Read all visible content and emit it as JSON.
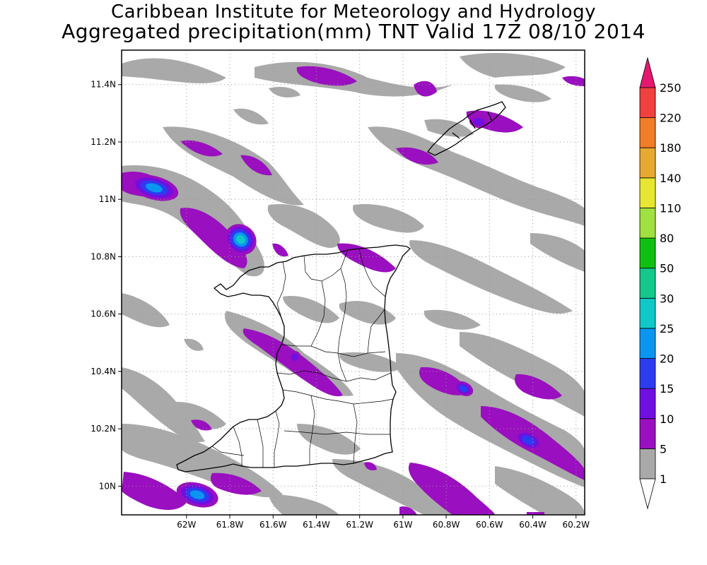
{
  "header": {
    "title": "Caribbean Institute for Meteorology and Hydrology",
    "subtitle": "Aggregated precipitation(mm) TNT Valid 17Z 08/10 2014"
  },
  "map": {
    "region": "Trinidad and Tobago",
    "lon_range": [
      -62.3,
      -60.16
    ],
    "lat_range": [
      9.9,
      11.52
    ],
    "lon_ticks": [
      {
        "value": -62.0,
        "label": "62W"
      },
      {
        "value": -61.8,
        "label": "61.8W"
      },
      {
        "value": -61.6,
        "label": "61.6W"
      },
      {
        "value": -61.4,
        "label": "61.4W"
      },
      {
        "value": -61.2,
        "label": "61.2W"
      },
      {
        "value": -61.0,
        "label": "61W"
      },
      {
        "value": -60.8,
        "label": "60.8W"
      },
      {
        "value": -60.6,
        "label": "60.6W"
      },
      {
        "value": -60.4,
        "label": "60.4W"
      },
      {
        "value": -60.2,
        "label": "60.2W"
      }
    ],
    "lat_ticks": [
      {
        "value": 10.0,
        "label": "10N"
      },
      {
        "value": 10.2,
        "label": "10.2N"
      },
      {
        "value": 10.4,
        "label": "10.4N"
      },
      {
        "value": 10.6,
        "label": "10.6N"
      },
      {
        "value": 10.8,
        "label": "10.8N"
      },
      {
        "value": 11.0,
        "label": "11N"
      },
      {
        "value": 11.2,
        "label": "11.2N"
      },
      {
        "value": 11.4,
        "label": "11.4N"
      }
    ],
    "grid": "dotted",
    "precip_cells": [
      {
        "lon": -62.15,
        "lat": 11.04,
        "rlon": 0.14,
        "rlat": 0.05,
        "rot": 15,
        "mm": 25
      },
      {
        "lon": -61.75,
        "lat": 10.86,
        "rlon": 0.09,
        "rlat": 0.06,
        "rot": 40,
        "mm": 30
      },
      {
        "lon": -61.95,
        "lat": 9.97,
        "rlon": 0.12,
        "rlat": 0.05,
        "rot": 15,
        "mm": 25
      },
      {
        "lon": -60.72,
        "lat": 10.34,
        "rlon": 0.06,
        "rlat": 0.03,
        "rot": 25,
        "mm": 20
      },
      {
        "lon": -60.42,
        "lat": 10.16,
        "rlon": 0.09,
        "rlat": 0.04,
        "rot": 25,
        "mm": 20
      },
      {
        "lon": -61.5,
        "lat": 10.45,
        "rlon": 0.04,
        "rlat": 0.03,
        "rot": 30,
        "mm": 15
      },
      {
        "lon": -60.65,
        "lat": 11.27,
        "rlon": 0.06,
        "rlat": 0.03,
        "rot": 10,
        "mm": 15
      }
    ]
  },
  "colorbar": {
    "levels": [
      "1",
      "5",
      "10",
      "15",
      "20",
      "25",
      "30",
      "50",
      "80",
      "110",
      "140",
      "180",
      "220",
      "250"
    ],
    "colors": [
      "#ffffff",
      "#a9a9a9",
      "#9a0fbf",
      "#6f10e0",
      "#2d3cf0",
      "#0a96f0",
      "#11c8c8",
      "#14c88c",
      "#10c010",
      "#a0e040",
      "#e6e633",
      "#e6aa33",
      "#f07d28",
      "#f04040",
      "#e6176e"
    ]
  }
}
